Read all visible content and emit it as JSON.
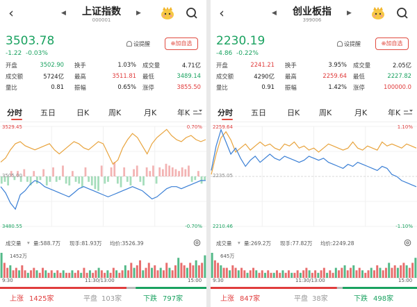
{
  "colors": {
    "up": "#e03c3c",
    "down": "#1aa260",
    "flat": "#999999",
    "line_price": "#3a7fd5",
    "line_avg": "#e8a33c",
    "accent": "#e04a3f"
  },
  "panels": [
    {
      "header": {
        "back_icon": "back-arrow-icon",
        "title": "上证指数",
        "code": "000001"
      },
      "quote": {
        "price": "3503.78",
        "change": "-1.22",
        "change_pct": "-0.03%"
      },
      "actions": {
        "remind_label": "设提醒",
        "add_label": "加自选"
      },
      "stats": [
        {
          "label": "开盘",
          "value": "3502.90",
          "tone": "down"
        },
        {
          "label": "换手",
          "value": "1.03%",
          "tone": "neutral"
        },
        {
          "label": "成交量",
          "value": "4.71亿",
          "tone": "neutral"
        },
        {
          "label": "成交额",
          "value": "5724亿",
          "tone": "neutral"
        },
        {
          "label": "最高",
          "value": "3511.81",
          "tone": "up"
        },
        {
          "label": "最低",
          "value": "3489.14",
          "tone": "down"
        },
        {
          "label": "量比",
          "value": "0.81",
          "tone": "neutral"
        },
        {
          "label": "振幅",
          "value": "0.65%",
          "tone": "neutral"
        },
        {
          "label": "涨停",
          "value": "3855.50",
          "tone": "up"
        }
      ],
      "tabs": [
        "分时",
        "五日",
        "日K",
        "周K",
        "月K",
        "年K"
      ],
      "chart": {
        "left_top": "3529.45",
        "right_top": "0.70%",
        "left_mid": "3505.00",
        "left_bottom": "3480.55",
        "right_bottom": "-0.70%",
        "prev_close": 3505.0,
        "y_range": [
          3480.55,
          3529.45
        ],
        "price": [
          3500,
          3497,
          3492,
          3489,
          3496,
          3498,
          3501,
          3503,
          3502,
          3500,
          3499,
          3498,
          3497,
          3496,
          3495,
          3497,
          3499,
          3500,
          3499,
          3498,
          3497,
          3496,
          3495,
          3496,
          3497,
          3498,
          3499,
          3500,
          3499,
          3498,
          3496,
          3494,
          3495,
          3497,
          3499,
          3500,
          3500,
          3499,
          3500,
          3501,
          3502,
          3503,
          3503
        ],
        "avg": [
          3512,
          3514,
          3518,
          3521,
          3522,
          3520,
          3519,
          3518,
          3519,
          3520,
          3521,
          3518,
          3516,
          3518,
          3520,
          3522,
          3521,
          3519,
          3518,
          3520,
          3522,
          3521,
          3516,
          3511,
          3513,
          3519,
          3523,
          3526,
          3524,
          3520,
          3516,
          3521,
          3524,
          3526,
          3528,
          3525,
          3523,
          3522,
          3524,
          3525,
          3523,
          3522,
          3523
        ],
        "bars": [
          -4,
          -3,
          -5,
          3,
          -2,
          3,
          -3,
          4,
          -3,
          -5,
          3,
          -4,
          -2,
          4,
          -5,
          -3,
          5,
          -3,
          -2,
          6,
          -4,
          -5,
          3,
          -3,
          -4,
          -6,
          5,
          -3,
          -5,
          -7,
          -8,
          6,
          -4,
          -3,
          5,
          8,
          -4,
          -6,
          5,
          -3,
          -5,
          4,
          6,
          -3,
          -5,
          5,
          3,
          6,
          -4,
          5,
          4,
          7,
          6,
          5,
          4,
          3,
          5,
          4,
          6,
          -3,
          -2,
          3,
          -4,
          -2
        ]
      },
      "volume": {
        "label": "成交量",
        "vol": "量:588.7万",
        "now": "现手:81.93万",
        "avg": "均价:3526.39",
        "max": "1452万",
        "series": [
          10,
          6,
          4,
          5,
          3,
          4,
          3,
          5,
          3,
          2,
          3,
          4,
          3,
          2,
          4,
          3,
          2,
          3,
          2,
          3,
          2,
          3,
          2,
          2,
          3,
          2,
          3,
          2,
          4,
          2,
          3,
          2,
          3,
          4,
          3,
          2,
          3,
          2,
          4,
          3,
          2,
          3,
          5,
          3,
          6,
          4,
          5,
          7,
          3,
          4,
          6,
          4,
          5,
          3,
          4,
          3,
          6,
          4,
          3,
          5,
          8,
          6,
          5,
          4,
          6,
          5,
          7,
          5,
          6,
          9
        ]
      },
      "times": {
        "start": "9:30",
        "mid": "11:30/13:00",
        "end": "15:00"
      },
      "breadth": {
        "up_label": "上涨",
        "up_count": "1425家",
        "flat_label": "平盘",
        "flat_count": "103家",
        "down_label": "下跌",
        "down_count": "797家",
        "up_n": 1425,
        "flat_n": 103,
        "down_n": 797
      }
    },
    {
      "header": {
        "back_icon": "back-arrow-icon",
        "title": "创业板指",
        "code": "399006"
      },
      "quote": {
        "price": "2230.19",
        "change": "-4.86",
        "change_pct": "-0.22%"
      },
      "actions": {
        "remind_label": "设提醒",
        "add_label": "加自选"
      },
      "stats": [
        {
          "label": "开盘",
          "value": "2241.21",
          "tone": "up"
        },
        {
          "label": "换手",
          "value": "3.95%",
          "tone": "neutral"
        },
        {
          "label": "成交量",
          "value": "2.05亿",
          "tone": "neutral"
        },
        {
          "label": "成交额",
          "value": "4290亿",
          "tone": "neutral"
        },
        {
          "label": "最高",
          "value": "2259.64",
          "tone": "up"
        },
        {
          "label": "最低",
          "value": "2227.82",
          "tone": "down"
        },
        {
          "label": "量比",
          "value": "0.91",
          "tone": "neutral"
        },
        {
          "label": "振幅",
          "value": "1.42%",
          "tone": "neutral"
        },
        {
          "label": "涨停",
          "value": "100000.0",
          "tone": "up"
        }
      ],
      "tabs": [
        "分时",
        "五日",
        "日K",
        "周K",
        "月K",
        "年K"
      ],
      "chart": {
        "left_top": "2259.64",
        "right_top": "1.10%",
        "left_mid": "2235.05",
        "left_bottom": "2210.46",
        "right_bottom": "-1.10%",
        "prev_close": 2235.05,
        "y_range": [
          2210.46,
          2259.64
        ],
        "price": [
          2238,
          2250,
          2258,
          2252,
          2246,
          2249,
          2244,
          2240,
          2243,
          2245,
          2242,
          2244,
          2246,
          2244,
          2243,
          2245,
          2244,
          2243,
          2242,
          2243,
          2245,
          2244,
          2243,
          2244,
          2242,
          2241,
          2240,
          2239,
          2241,
          2240,
          2242,
          2241,
          2240,
          2239,
          2238,
          2240,
          2239,
          2236,
          2235,
          2233,
          2232,
          2231,
          2230
        ],
        "avg": [
          2236,
          2246,
          2254,
          2257,
          2253,
          2247,
          2249,
          2251,
          2248,
          2250,
          2252,
          2250,
          2251,
          2249,
          2248,
          2251,
          2250,
          2252,
          2249,
          2250,
          2248,
          2249,
          2247,
          2249,
          2251,
          2250,
          2249,
          2248,
          2249,
          2252,
          2249,
          2248,
          2250,
          2249,
          2248,
          2252,
          2250,
          2251,
          2250,
          2249,
          2251,
          2250,
          2249
        ],
        "bars": []
      },
      "volume": {
        "label": "成交量",
        "vol": "量:269.2万",
        "now": "现手:77.82万",
        "avg": "均价:2249.28",
        "max": "645万",
        "series": [
          10,
          7,
          6,
          5,
          4,
          4,
          3,
          5,
          4,
          3,
          4,
          3,
          2,
          3,
          4,
          3,
          2,
          3,
          2,
          3,
          2,
          2,
          3,
          2,
          3,
          2,
          3,
          2,
          2,
          3,
          2,
          3,
          4,
          3,
          2,
          3,
          2,
          3,
          4,
          2,
          3,
          2,
          4,
          3,
          4,
          5,
          3,
          4,
          5,
          3,
          4,
          3,
          2,
          3,
          4,
          3,
          5,
          4,
          3,
          4,
          6,
          4,
          5,
          4,
          5,
          6,
          5,
          4,
          6,
          8
        ]
      },
      "times": {
        "start": "9:30",
        "mid": "11:30/13:00",
        "end": "15:00"
      },
      "breadth": {
        "up_label": "上涨",
        "up_count": "847家",
        "flat_label": "平盘",
        "flat_count": "38家",
        "down_label": "下跌",
        "down_count": "498家",
        "up_n": 847,
        "flat_n": 38,
        "down_n": 498
      }
    }
  ]
}
